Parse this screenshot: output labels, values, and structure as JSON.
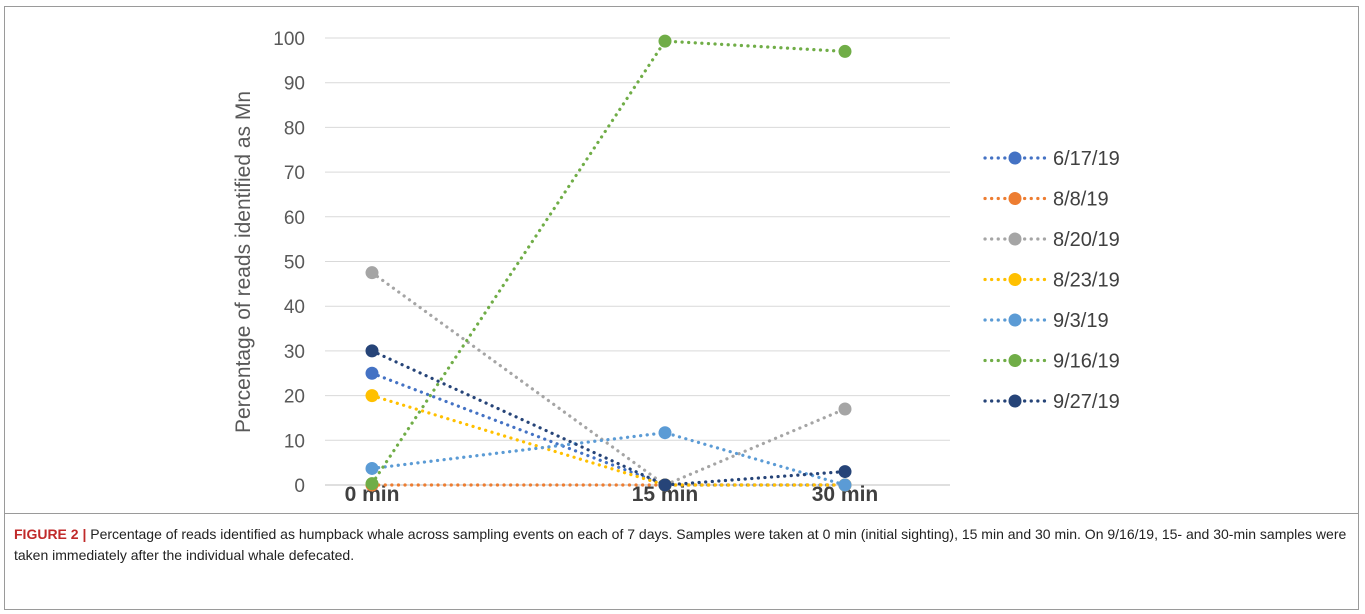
{
  "chart_data": {
    "type": "line",
    "categories": [
      "0 min",
      "15 min",
      "30 min"
    ],
    "ylabel": "Percentage of reads identified as Mn",
    "xlabel": "",
    "ylim": [
      0,
      100
    ],
    "yticks": [
      0,
      10,
      20,
      30,
      40,
      50,
      60,
      70,
      80,
      90,
      100
    ],
    "grid": true,
    "legend_position": "right",
    "line_style": "dotted",
    "series": [
      {
        "name": "6/17/19",
        "color": "#4472C4",
        "values": [
          25,
          0,
          0
        ]
      },
      {
        "name": "8/8/19",
        "color": "#ED7D31",
        "values": [
          0,
          0,
          0
        ]
      },
      {
        "name": "8/20/19",
        "color": "#A5A5A5",
        "values": [
          47.5,
          0,
          17
        ]
      },
      {
        "name": "8/23/19",
        "color": "#FFC000",
        "values": [
          20,
          0,
          0
        ]
      },
      {
        "name": "9/3/19",
        "color": "#5B9BD5",
        "values": [
          3.7,
          11.7,
          0
        ]
      },
      {
        "name": "9/16/19",
        "color": "#70AD47",
        "values": [
          0.3,
          99.3,
          97
        ]
      },
      {
        "name": "9/27/19",
        "color": "#264478",
        "values": [
          30,
          0,
          3
        ]
      }
    ]
  },
  "caption": {
    "label": "FIGURE 2 |",
    "text": " Percentage of reads identified as humpback whale across sampling events on each of 7 days. Samples were taken at 0 min (initial sighting), 15 min and 30 min. On 9/16/19, 15- and 30-min samples were taken immediately after the individual whale defecated."
  }
}
